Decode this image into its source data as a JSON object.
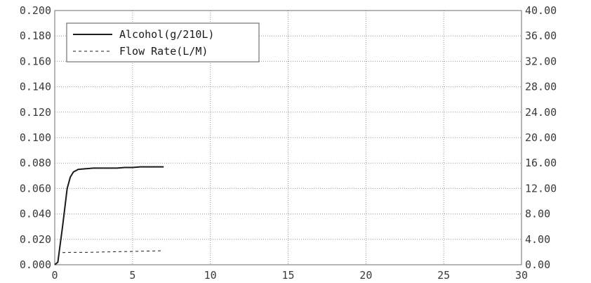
{
  "chart_data": {
    "type": "line",
    "title": "",
    "xlabel": "",
    "ylabel": "",
    "y2label": "",
    "grid": true,
    "legend_position": "top-left",
    "xlim": [
      0,
      30
    ],
    "ylim": [
      0,
      0.2
    ],
    "y2lim": [
      0,
      40
    ],
    "x_ticks": [
      "0",
      "5",
      "10",
      "15",
      "20",
      "25",
      "30"
    ],
    "x_tick_values": [
      0,
      5,
      10,
      15,
      20,
      25,
      30
    ],
    "y_ticks": [
      "0.000",
      "0.020",
      "0.040",
      "0.060",
      "0.080",
      "0.100",
      "0.120",
      "0.140",
      "0.160",
      "0.180",
      "0.200"
    ],
    "y_tick_values": [
      0,
      0.02,
      0.04,
      0.06,
      0.08,
      0.1,
      0.12,
      0.14,
      0.16,
      0.18,
      0.2
    ],
    "y2_ticks": [
      "0.00",
      "4.00",
      "8.00",
      "12.00",
      "16.00",
      "20.00",
      "24.00",
      "28.00",
      "32.00",
      "36.00",
      "40.00"
    ],
    "y2_tick_values": [
      0,
      4,
      8,
      12,
      16,
      20,
      24,
      28,
      32,
      36,
      40
    ],
    "series": [
      {
        "name": "Alcohol(g/210L)",
        "axis": "left",
        "style": "solid",
        "color": "#1a1a1a",
        "x": [
          0,
          0.2,
          0.5,
          0.8,
          1.0,
          1.2,
          1.5,
          2.0,
          2.5,
          3.0,
          3.5,
          4.0,
          4.5,
          5.0,
          5.5,
          6.0,
          6.5,
          7.0
        ],
        "y": [
          0,
          0.002,
          0.03,
          0.06,
          0.069,
          0.073,
          0.075,
          0.0755,
          0.076,
          0.076,
          0.076,
          0.076,
          0.0765,
          0.0765,
          0.077,
          0.077,
          0.077,
          0.077
        ]
      },
      {
        "name": "Flow Rate(L/M)",
        "axis": "right",
        "style": "dashed",
        "color": "#1a1a1a",
        "x": [
          0.5,
          1.0,
          2.0,
          3.0,
          4.0,
          5.0,
          6.0,
          7.0
        ],
        "y": [
          1.9,
          1.95,
          1.95,
          2.0,
          2.05,
          2.1,
          2.15,
          2.2
        ]
      }
    ]
  }
}
